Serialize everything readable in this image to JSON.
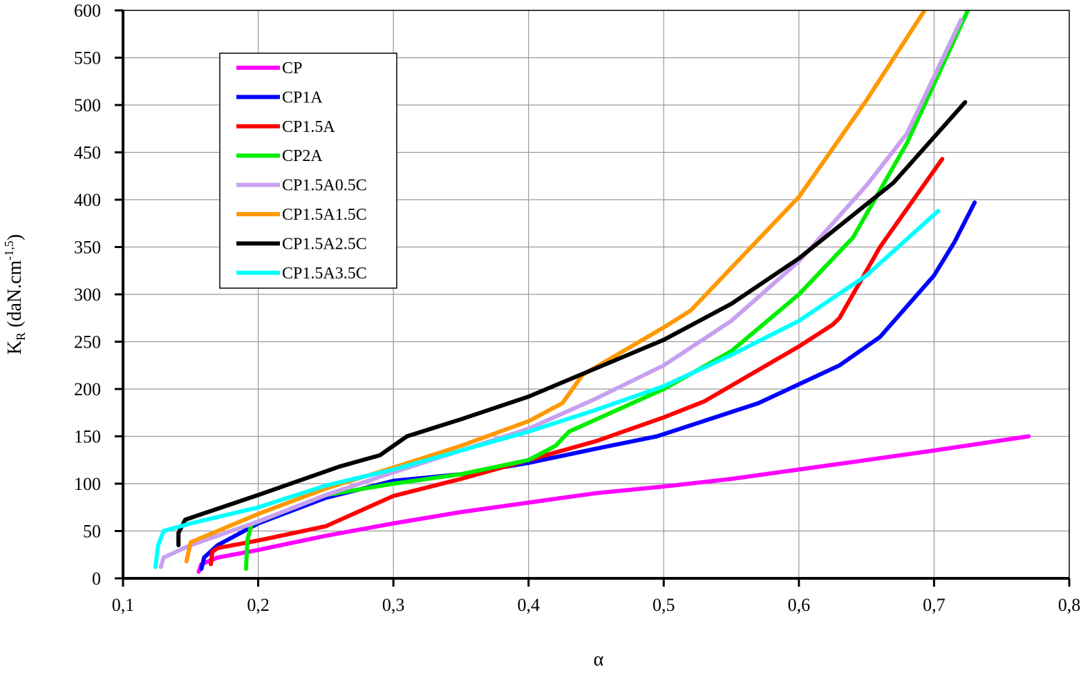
{
  "chart_data": {
    "type": "line",
    "title": "",
    "xlabel": "α",
    "ylabel_main": "K",
    "ylabel_sub": "R",
    "ylabel_unit_pre": " (daN.cm",
    "ylabel_unit_sup": "-1,5",
    "ylabel_unit_post": ")",
    "xlim": [
      0.1,
      0.8
    ],
    "ylim": [
      0,
      600
    ],
    "xticks": [
      0.1,
      0.2,
      0.3,
      0.4,
      0.5,
      0.6,
      0.7,
      0.8
    ],
    "xtick_labels": [
      "0,1",
      "0,2",
      "0,3",
      "0,4",
      "0,5",
      "0,6",
      "0,7",
      "0,8"
    ],
    "yticks": [
      0,
      50,
      100,
      150,
      200,
      250,
      300,
      350,
      400,
      450,
      500,
      550,
      600
    ],
    "ytick_labels": [
      "0",
      "50",
      "100",
      "150",
      "200",
      "250",
      "300",
      "350",
      "400",
      "450",
      "500",
      "550",
      "600"
    ],
    "grid": true,
    "legend_position": "top-left",
    "series": [
      {
        "name": "CP",
        "color": "#ff00ff",
        "x": [
          0.156,
          0.158,
          0.17,
          0.2,
          0.25,
          0.3,
          0.35,
          0.4,
          0.45,
          0.5,
          0.55,
          0.6,
          0.65,
          0.7,
          0.77
        ],
        "y": [
          7,
          15,
          22,
          30,
          45,
          58,
          70,
          80,
          90,
          97,
          105,
          115,
          125,
          135,
          150
        ]
      },
      {
        "name": "CP1A",
        "color": "#0000ff",
        "x": [
          0.158,
          0.16,
          0.17,
          0.2,
          0.25,
          0.3,
          0.35,
          0.4,
          0.45,
          0.495,
          0.57,
          0.6,
          0.63,
          0.66,
          0.7,
          0.715,
          0.73
        ],
        "y": [
          10,
          22,
          35,
          58,
          85,
          103,
          110,
          122,
          137,
          150,
          185,
          205,
          225,
          255,
          320,
          355,
          397
        ]
      },
      {
        "name": "CP1.5A",
        "color": "#ff0000",
        "x": [
          0.165,
          0.166,
          0.17,
          0.2,
          0.25,
          0.3,
          0.35,
          0.4,
          0.45,
          0.5,
          0.53,
          0.6,
          0.625,
          0.63,
          0.66,
          0.706
        ],
        "y": [
          15,
          28,
          32,
          40,
          55,
          87,
          105,
          125,
          145,
          170,
          187,
          245,
          268,
          275,
          350,
          443
        ]
      },
      {
        "name": "CP2A",
        "color": "#00ee00",
        "x": [
          0.191,
          0.192,
          0.195,
          0.25,
          0.3,
          0.35,
          0.4,
          0.42,
          0.43,
          0.5,
          0.55,
          0.6,
          0.64,
          0.68,
          0.725
        ],
        "y": [
          10,
          40,
          57,
          88,
          100,
          110,
          125,
          140,
          155,
          200,
          240,
          300,
          360,
          460,
          600
        ]
      },
      {
        "name": "CP1.5A0.5C",
        "color": "#c8a0f0",
        "x": [
          0.128,
          0.13,
          0.15,
          0.2,
          0.25,
          0.3,
          0.35,
          0.4,
          0.45,
          0.5,
          0.55,
          0.6,
          0.65,
          0.68,
          0.72
        ],
        "y": [
          12,
          22,
          35,
          60,
          88,
          112,
          135,
          158,
          190,
          225,
          272,
          335,
          415,
          470,
          590
        ]
      },
      {
        "name": "CP1.5A1.5C",
        "color": "#ff9900",
        "x": [
          0.147,
          0.15,
          0.2,
          0.25,
          0.3,
          0.35,
          0.4,
          0.425,
          0.44,
          0.5,
          0.52,
          0.55,
          0.6,
          0.65,
          0.693
        ],
        "y": [
          18,
          38,
          68,
          95,
          117,
          140,
          166,
          185,
          215,
          265,
          283,
          328,
          403,
          505,
          600
        ]
      },
      {
        "name": "CP1.5A2.5C",
        "color": "#000000",
        "x": [
          0.141,
          0.141,
          0.146,
          0.2,
          0.26,
          0.29,
          0.295,
          0.31,
          0.35,
          0.4,
          0.45,
          0.5,
          0.55,
          0.6,
          0.67,
          0.723
        ],
        "y": [
          35,
          48,
          62,
          88,
          118,
          130,
          135,
          150,
          168,
          192,
          222,
          252,
          290,
          338,
          418,
          503
        ]
      },
      {
        "name": "CP1.5A3.5C",
        "color": "#00ffff",
        "x": [
          0.124,
          0.126,
          0.13,
          0.15,
          0.2,
          0.25,
          0.3,
          0.35,
          0.4,
          0.45,
          0.5,
          0.55,
          0.6,
          0.65,
          0.703
        ],
        "y": [
          12,
          35,
          50,
          58,
          75,
          98,
          115,
          135,
          155,
          178,
          203,
          236,
          272,
          320,
          388
        ]
      }
    ]
  }
}
